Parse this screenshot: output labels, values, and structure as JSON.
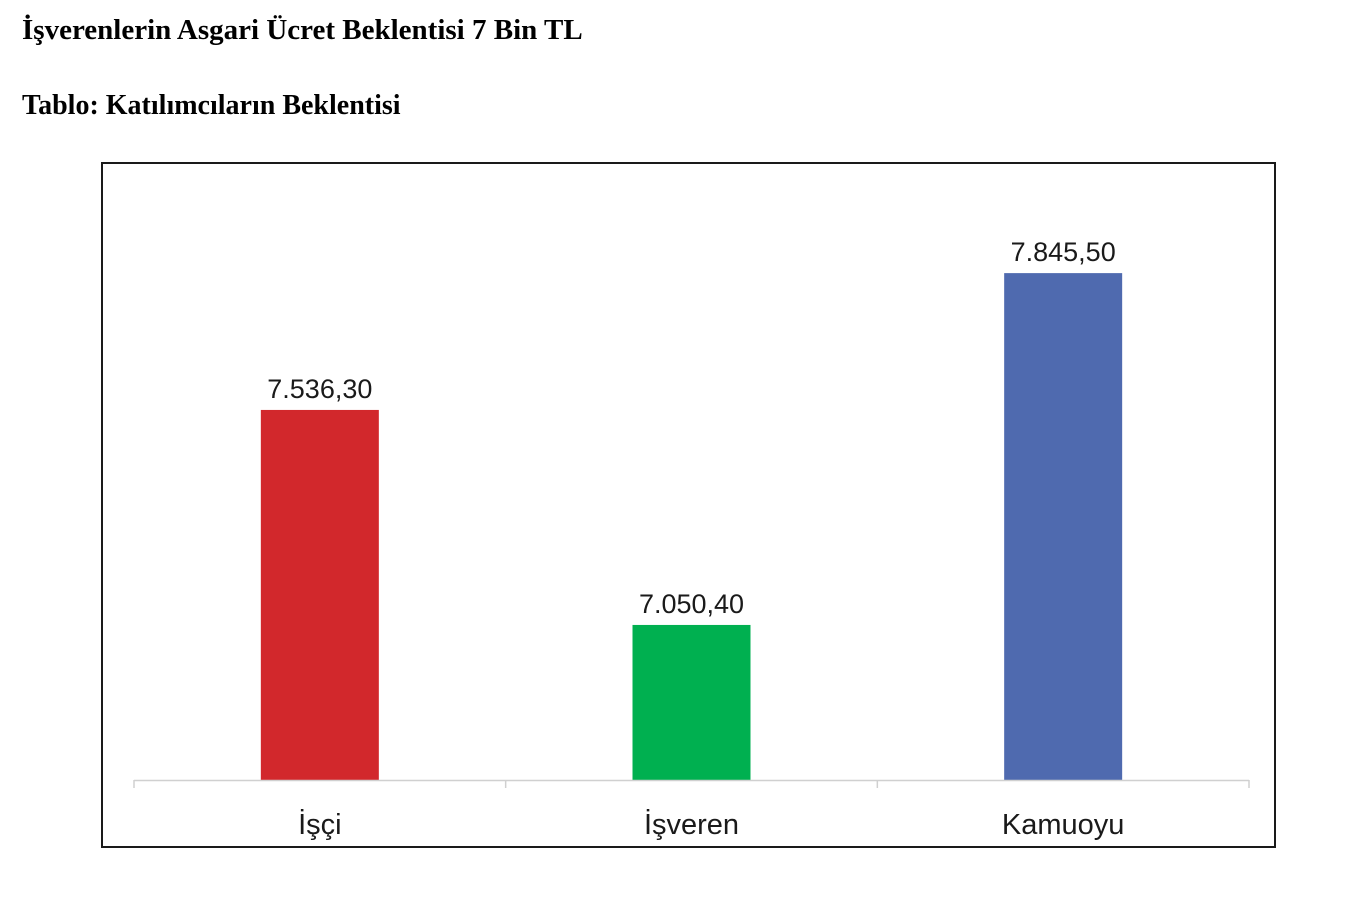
{
  "document": {
    "title": "İşverenlerin Asgari Ücret Beklentisi 7 Bin TL",
    "subtitle": "Tablo: Katılımcıların Beklentisi"
  },
  "chart_data": {
    "type": "bar",
    "title": "",
    "xlabel": "",
    "ylabel": "",
    "categories": [
      "İşçi",
      "İşveren",
      "Kamuoyu"
    ],
    "values": [
      7536.3,
      7050.4,
      7845.5
    ],
    "value_labels": [
      "7.536,30",
      "7.050,40",
      "7.845,50"
    ],
    "colors": [
      "#d2282c",
      "#00b050",
      "#4f6aaf"
    ],
    "ylim": [
      6700,
      7900
    ],
    "grid": false,
    "legend": "none"
  }
}
